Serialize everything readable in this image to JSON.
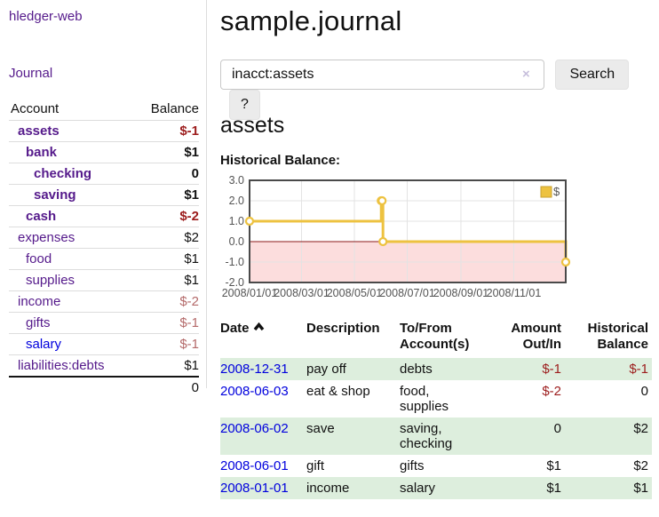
{
  "app": {
    "brand": "hledger-web"
  },
  "sidebar": {
    "nav_journal": "Journal",
    "header": {
      "account": "Account",
      "balance": "Balance"
    },
    "accounts": [
      {
        "name": "assets",
        "balance": "$-1",
        "level": 0,
        "bold": true,
        "blue": false
      },
      {
        "name": "bank",
        "balance": "$1",
        "level": 1,
        "bold": true,
        "blue": false
      },
      {
        "name": "checking",
        "balance": "0",
        "level": 2,
        "bold": true,
        "blue": false
      },
      {
        "name": "saving",
        "balance": "$1",
        "level": 2,
        "bold": true,
        "blue": false
      },
      {
        "name": "cash",
        "balance": "$-2",
        "level": 1,
        "bold": true,
        "blue": false
      },
      {
        "name": "expenses",
        "balance": "$2",
        "level": 0,
        "bold": false,
        "blue": false
      },
      {
        "name": "food",
        "balance": "$1",
        "level": 1,
        "bold": false,
        "blue": false
      },
      {
        "name": "supplies",
        "balance": "$1",
        "level": 1,
        "bold": false,
        "blue": false
      },
      {
        "name": "income",
        "balance": "$-2",
        "level": 0,
        "bold": false,
        "blue": false
      },
      {
        "name": "gifts",
        "balance": "$-1",
        "level": 1,
        "bold": false,
        "blue": false
      },
      {
        "name": "salary",
        "balance": "$-1",
        "level": 1,
        "bold": false,
        "blue": true
      },
      {
        "name": "liabilities:debts",
        "balance": "$1",
        "level": 0,
        "bold": false,
        "blue": false
      }
    ],
    "total": "0"
  },
  "main": {
    "title": "sample.journal",
    "search": {
      "value": "inacct:assets",
      "clear_icon": "×",
      "search_label": "Search",
      "help_label": "?"
    },
    "account_heading": "assets",
    "chart_label": "Historical Balance:"
  },
  "chart_data": {
    "type": "line",
    "step": true,
    "title": "Historical Balance:",
    "series": [
      {
        "name": "$",
        "points": [
          [
            "2008-01-01",
            1
          ],
          [
            "2008-06-01",
            2
          ],
          [
            "2008-06-02",
            2
          ],
          [
            "2008-06-03",
            0
          ],
          [
            "2008-12-31",
            -1
          ]
        ]
      }
    ],
    "x_range": [
      "2008-01-01",
      "2008-12-31"
    ],
    "x_tick_labels": [
      "2008/01/01",
      "2008/03/01",
      "2008/05/01",
      "2008/07/01",
      "2008/09/01",
      "2008/11/01"
    ],
    "y_ticks": [
      "3.0",
      "2.0",
      "1.0",
      "0.0",
      "-1.0",
      "-2.0"
    ],
    "ylim": [
      -2,
      3
    ],
    "grid": true,
    "legend_position": "top-right",
    "legend_label": "$",
    "colors": {
      "line": "#edc240",
      "marker_fill": "#ffffff",
      "legend_border": "#c9a22f",
      "negative_region": "#fcdddd",
      "zero_line": "#8b1a1a",
      "gridline": "#e3e3e3",
      "border": "#4a4a4a",
      "tick_text": "#545454"
    }
  },
  "register": {
    "headers": {
      "date": "Date",
      "description": "Description",
      "accounts": "To/From Account(s)",
      "amount": "Amount Out/In",
      "balance": "Historical Balance"
    },
    "rows": [
      {
        "date": "2008-12-31",
        "description": "pay off",
        "accounts": "debts",
        "amount": "$-1",
        "balance": "$-1"
      },
      {
        "date": "2008-06-03",
        "description": "eat & shop",
        "accounts": "food, supplies",
        "amount": "$-2",
        "balance": "0"
      },
      {
        "date": "2008-06-02",
        "description": "save",
        "accounts": "saving, checking",
        "amount": "0",
        "balance": "$2"
      },
      {
        "date": "2008-06-01",
        "description": "gift",
        "accounts": "gifts",
        "amount": "$1",
        "balance": "$2"
      },
      {
        "date": "2008-01-01",
        "description": "income",
        "accounts": "salary",
        "amount": "$1",
        "balance": "$1"
      }
    ]
  }
}
